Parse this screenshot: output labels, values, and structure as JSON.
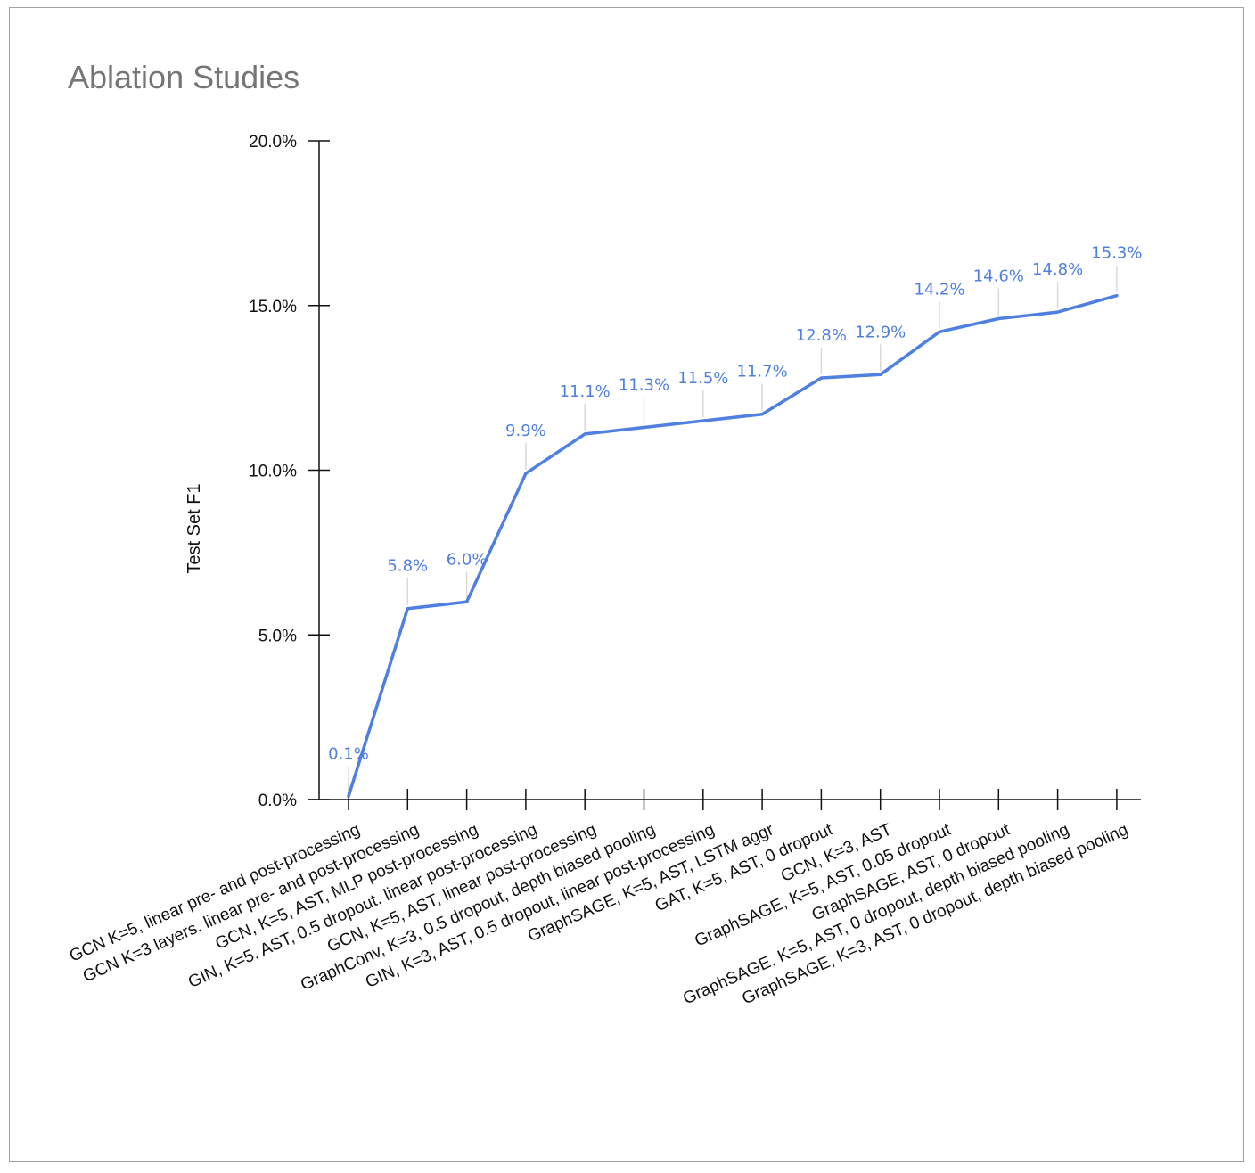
{
  "chart_data": {
    "type": "line",
    "title": "Ablation Studies",
    "xlabel": "",
    "ylabel": "Test Set F1",
    "ylim": [
      0,
      20
    ],
    "y_ticks": [
      "0.0%",
      "5.0%",
      "10.0%",
      "15.0%",
      "20.0%"
    ],
    "categories": [
      "GCN K=5, linear pre- and post-processing",
      "GCN K=3 layers, linear pre- and post-processing",
      "GCN, K=5, AST, MLP post-processing",
      "GIN, K=5, AST, 0.5 dropout, linear post-processing",
      "GCN, K=5, AST, linear post-processing",
      "GraphConv, K=3, 0.5 dropout, depth biased pooling",
      "GIN, K=3, AST, 0.5 dropout, linear post-processing",
      "GraphSAGE, K=5, AST, LSTM aggr",
      "GAT, K=5, AST, 0 dropout",
      "GCN, K=3, AST",
      "GraphSAGE, K=5, AST, 0.05 dropout",
      "GraphSAGE, AST, 0 dropout",
      "GraphSAGE, K=5, AST, 0 dropout, depth biased pooling",
      "GraphSAGE, K=3, AST, 0 dropout, depth biased pooling"
    ],
    "series": [
      {
        "values": [
          0.1,
          5.8,
          6.0,
          9.9,
          11.1,
          11.3,
          11.5,
          11.7,
          12.8,
          12.9,
          14.2,
          14.6,
          14.8,
          15.3
        ],
        "labels": [
          "0.1%",
          "5.8%",
          "6.0%",
          "9.9%",
          "11.1%",
          "11.3%",
          "11.5%",
          "11.7%",
          "12.8%",
          "12.9%",
          "14.2%",
          "14.6%",
          "14.8%",
          "15.3%"
        ]
      }
    ],
    "grid": false,
    "legend": "none",
    "colors": {
      "line": "#4f7fe0",
      "label": "#4f7fe0",
      "axis": "#111111",
      "leader": "#d9d9d9",
      "title": "#757575"
    }
  }
}
